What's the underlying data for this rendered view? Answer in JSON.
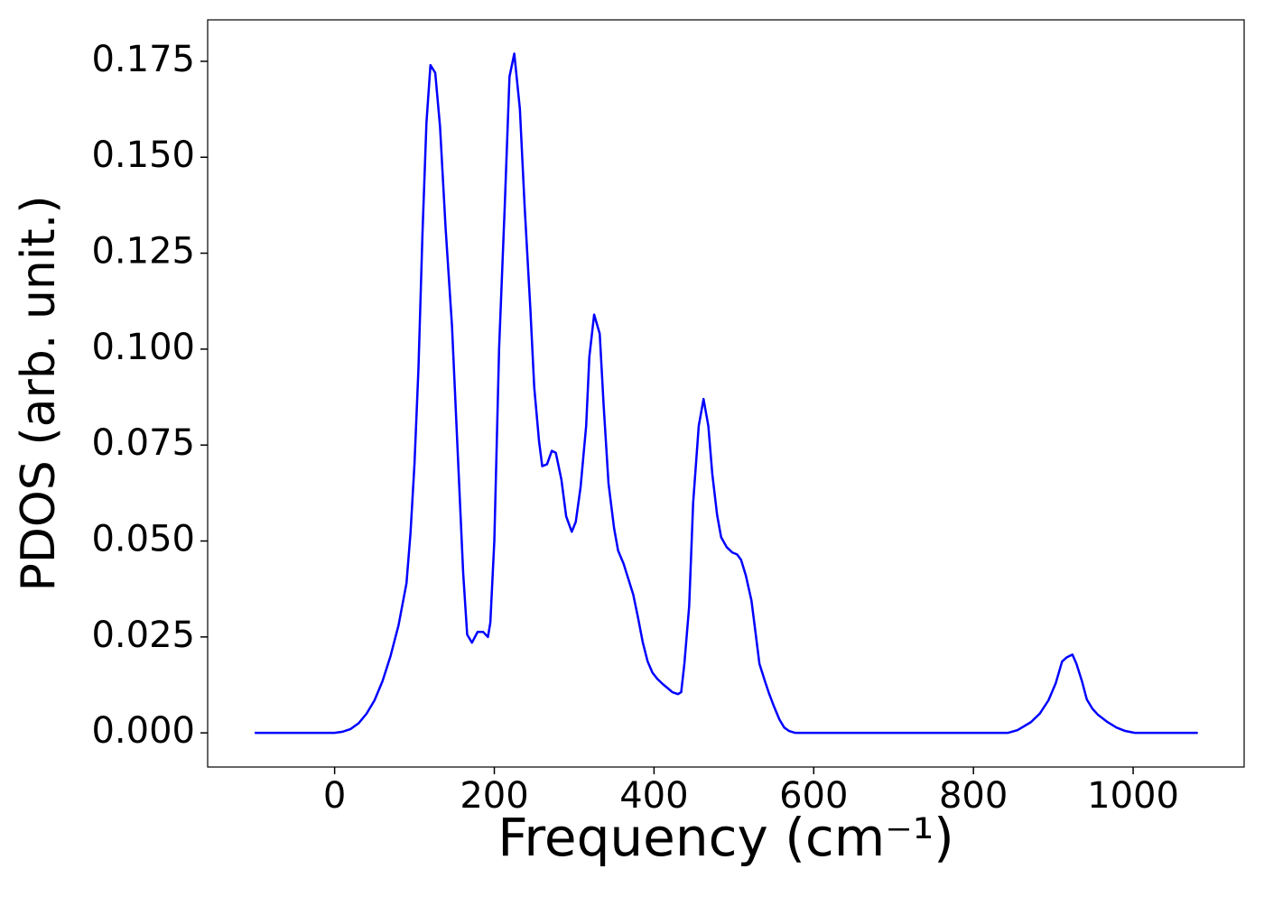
{
  "chart_data": {
    "type": "line",
    "xlabel": "Frequency (cm⁻¹)",
    "ylabel": "PDOS (arb. unit.)",
    "xlim": [
      -159,
      1139
    ],
    "ylim": [
      -0.0089,
      0.1858
    ],
    "xticks": [
      0,
      200,
      400,
      600,
      800,
      1000
    ],
    "yticks": [
      {
        "value": 0,
        "label": "0.000"
      },
      {
        "value": 0.025,
        "label": "0.025"
      },
      {
        "value": 0.05,
        "label": "0.050"
      },
      {
        "value": 0.075,
        "label": "0.075"
      },
      {
        "value": 0.1,
        "label": "0.100"
      },
      {
        "value": 0.125,
        "label": "0.125"
      },
      {
        "value": 0.15,
        "label": "0.150"
      },
      {
        "value": 0.175,
        "label": "0.175"
      }
    ],
    "x": [
      -100,
      -50,
      0,
      10,
      20,
      30,
      40,
      50,
      60,
      70,
      80,
      90,
      95,
      100,
      105,
      110,
      115,
      120,
      126,
      132,
      139,
      147,
      161,
      166,
      172,
      179,
      186,
      192,
      195,
      200,
      206,
      213,
      219,
      225,
      232,
      238,
      245,
      250,
      256,
      260,
      266,
      272,
      277,
      284,
      290,
      297,
      302,
      308,
      315,
      319,
      325,
      332,
      337,
      343,
      350,
      355,
      362,
      368,
      374,
      380,
      386,
      392,
      398,
      404,
      411,
      418,
      423,
      430,
      434,
      438,
      444,
      449,
      456,
      462,
      468,
      473,
      479,
      484,
      491,
      498,
      504,
      509,
      515,
      522,
      527,
      532,
      539,
      544,
      550,
      557,
      563,
      569,
      577,
      843,
      855,
      872,
      883,
      894,
      903,
      911,
      917,
      924,
      929,
      936,
      942,
      949,
      956,
      968,
      979,
      990,
      1002,
      1081
    ],
    "series": [
      {
        "name": "PDOS",
        "color": "#0000ff",
        "values": [
          0,
          0,
          0,
          0.0003,
          0.001,
          0.0025,
          0.005,
          0.0085,
          0.0135,
          0.02,
          0.028,
          0.039,
          0.052,
          0.07,
          0.095,
          0.13,
          0.159,
          0.174,
          0.172,
          0.158,
          0.1315,
          0.106,
          0.0416,
          0.0256,
          0.0235,
          0.0263,
          0.0263,
          0.025,
          0.0287,
          0.05,
          0.1003,
          0.137,
          0.171,
          0.177,
          0.1626,
          0.137,
          0.111,
          0.09,
          0.076,
          0.0695,
          0.07,
          0.0735,
          0.073,
          0.066,
          0.0564,
          0.0524,
          0.055,
          0.064,
          0.08,
          0.098,
          0.109,
          0.104,
          0.085,
          0.065,
          0.0533,
          0.0475,
          0.044,
          0.04,
          0.036,
          0.03,
          0.0235,
          0.0186,
          0.0157,
          0.0141,
          0.0127,
          0.0115,
          0.0106,
          0.0101,
          0.0106,
          0.018,
          0.033,
          0.06,
          0.08,
          0.087,
          0.08,
          0.0674,
          0.0568,
          0.051,
          0.0484,
          0.047,
          0.0465,
          0.0451,
          0.041,
          0.0345,
          0.0263,
          0.018,
          0.0134,
          0.0103,
          0.007,
          0.0035,
          0.0014,
          0.0005,
          0,
          0,
          0.0007,
          0.0028,
          0.005,
          0.0085,
          0.0129,
          0.0186,
          0.0197,
          0.0204,
          0.018,
          0.0134,
          0.0087,
          0.0063,
          0.0047,
          0.0028,
          0.0014,
          0.0005,
          0,
          0
        ]
      }
    ]
  }
}
